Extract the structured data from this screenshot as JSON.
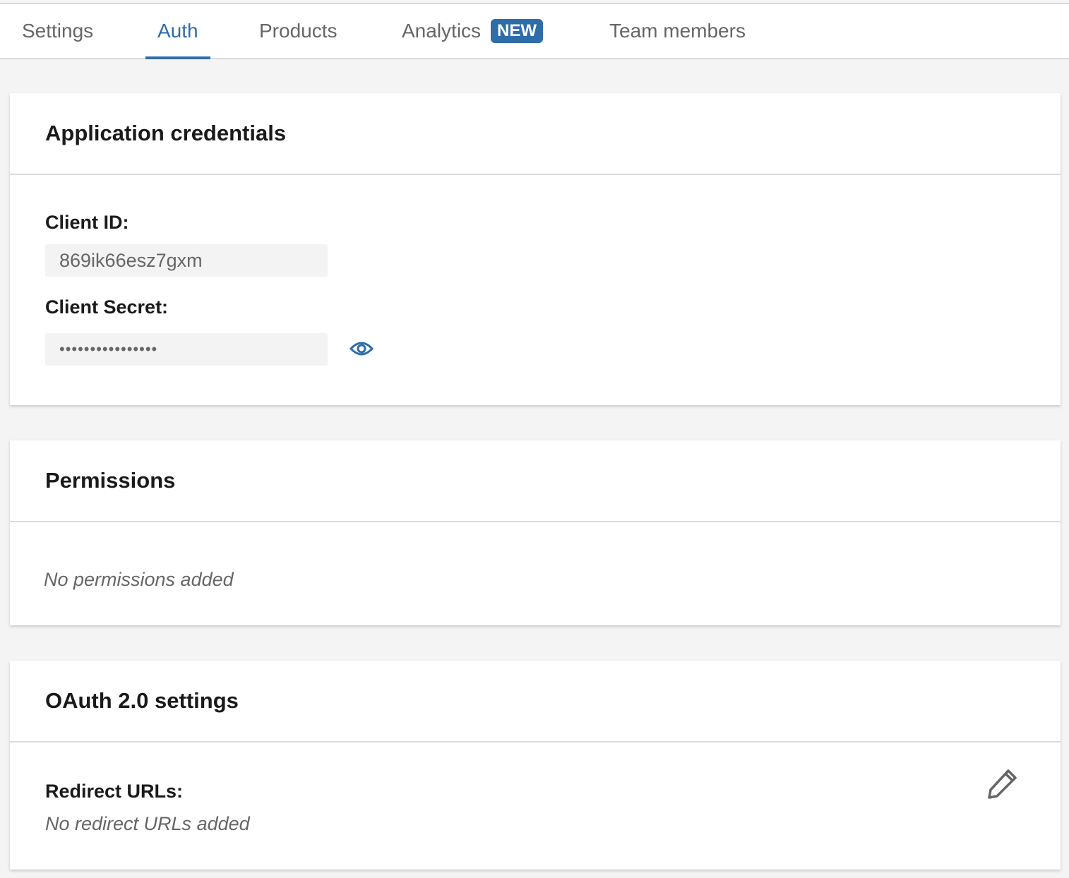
{
  "tabs": [
    {
      "label": "Settings",
      "active": false
    },
    {
      "label": "Auth",
      "active": true
    },
    {
      "label": "Products",
      "active": false
    },
    {
      "label": "Analytics",
      "active": false,
      "badge": "NEW"
    },
    {
      "label": "Team members",
      "active": false
    }
  ],
  "accent_color": "#2e6da8",
  "credentials": {
    "title": "Application credentials",
    "client_id_label": "Client ID:",
    "client_id_value": "869ik66esz7gxm",
    "client_secret_label": "Client Secret:",
    "client_secret_value": "••••••••••••••••",
    "reveal_icon": "eye-icon"
  },
  "permissions": {
    "title": "Permissions",
    "empty_text": "No permissions added"
  },
  "oauth": {
    "title": "OAuth 2.0 settings",
    "redirect_label": "Redirect URLs:",
    "redirect_empty": "No redirect URLs added",
    "edit_icon": "pencil-icon"
  }
}
